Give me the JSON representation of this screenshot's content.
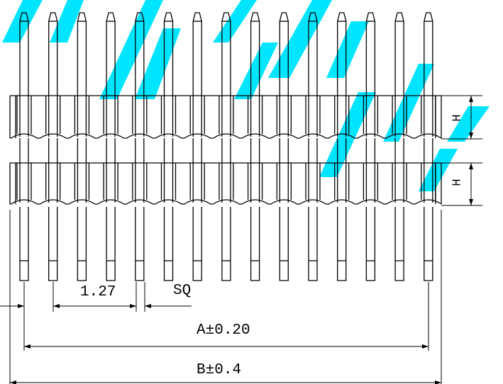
{
  "watermark": {
    "text": "YADUNENG",
    "color": "#00e5ff"
  },
  "drawing": {
    "line_color": "#000000",
    "pin_count": 15
  },
  "dimensions": {
    "pitch": "1.27",
    "square": "SQ",
    "a_label": "A",
    "a_tol": "±0.20",
    "b_label": "B",
    "b_tol": "±0.4",
    "h_label": "H"
  }
}
